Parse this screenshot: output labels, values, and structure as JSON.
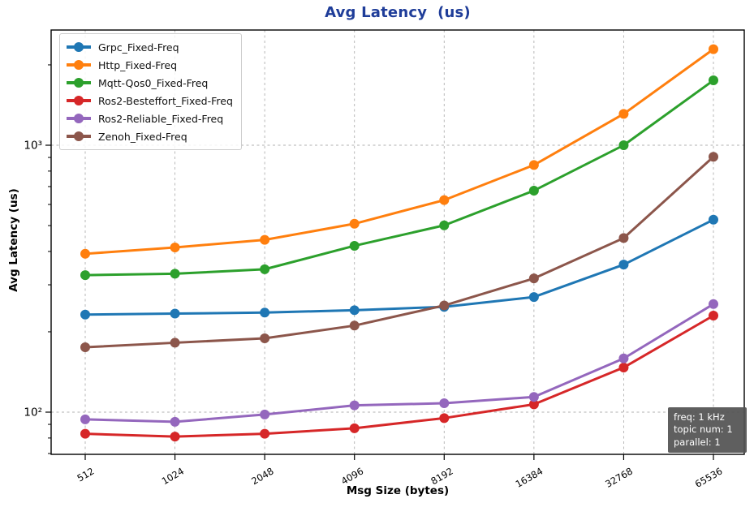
{
  "title": "Avg Latency  (us)",
  "title_color": "#1f3d99",
  "chart_data": {
    "type": "line",
    "title": "Avg Latency  (us)",
    "xlabel": "Msg Size (bytes)",
    "ylabel": "Avg Latency (us)",
    "x_scale": "category",
    "y_scale": "log",
    "ylim": [
      70,
      2700
    ],
    "grid": "dashed",
    "legend_position": "upper-left",
    "categories": [
      "512",
      "1024",
      "2048",
      "4096",
      "8192",
      "16384",
      "32768",
      "65536"
    ],
    "yticks": [
      {
        "value": 1000,
        "label": "10³"
      },
      {
        "value": 100,
        "label": "10²"
      }
    ],
    "minor_yticks": [
      70,
      80,
      90,
      200,
      300,
      400,
      500,
      600,
      700,
      800,
      900,
      2000
    ],
    "series": [
      {
        "name": "Grpc_Fixed-Freq",
        "color": "#1f77b4",
        "values": [
          232,
          234,
          236,
          241,
          248,
          270,
          357,
          526
        ]
      },
      {
        "name": "Http_Fixed-Freq",
        "color": "#ff7f0e",
        "values": [
          392,
          414,
          442,
          508,
          623,
          843,
          1310,
          2290
        ]
      },
      {
        "name": "Mqtt-Qos0_Fixed-Freq",
        "color": "#2ca02c",
        "values": [
          326,
          330,
          343,
          420,
          501,
          676,
          1000,
          1750
        ]
      },
      {
        "name": "Ros2-Besteffort_Fixed-Freq",
        "color": "#d62728",
        "values": [
          83,
          81,
          83,
          87,
          95,
          107,
          147,
          230
        ]
      },
      {
        "name": "Ros2-Reliable_Fixed-Freq",
        "color": "#9467bd",
        "values": [
          94,
          92,
          98,
          106,
          108,
          114,
          159,
          254
        ]
      },
      {
        "name": "Zenoh_Fixed-Freq",
        "color": "#8c564b",
        "values": [
          175,
          182,
          189,
          211,
          251,
          317,
          449,
          905
        ]
      }
    ],
    "annotation": {
      "lines": [
        "freq: 1 kHz",
        "topic num: 1",
        "parallel: 1"
      ]
    }
  }
}
